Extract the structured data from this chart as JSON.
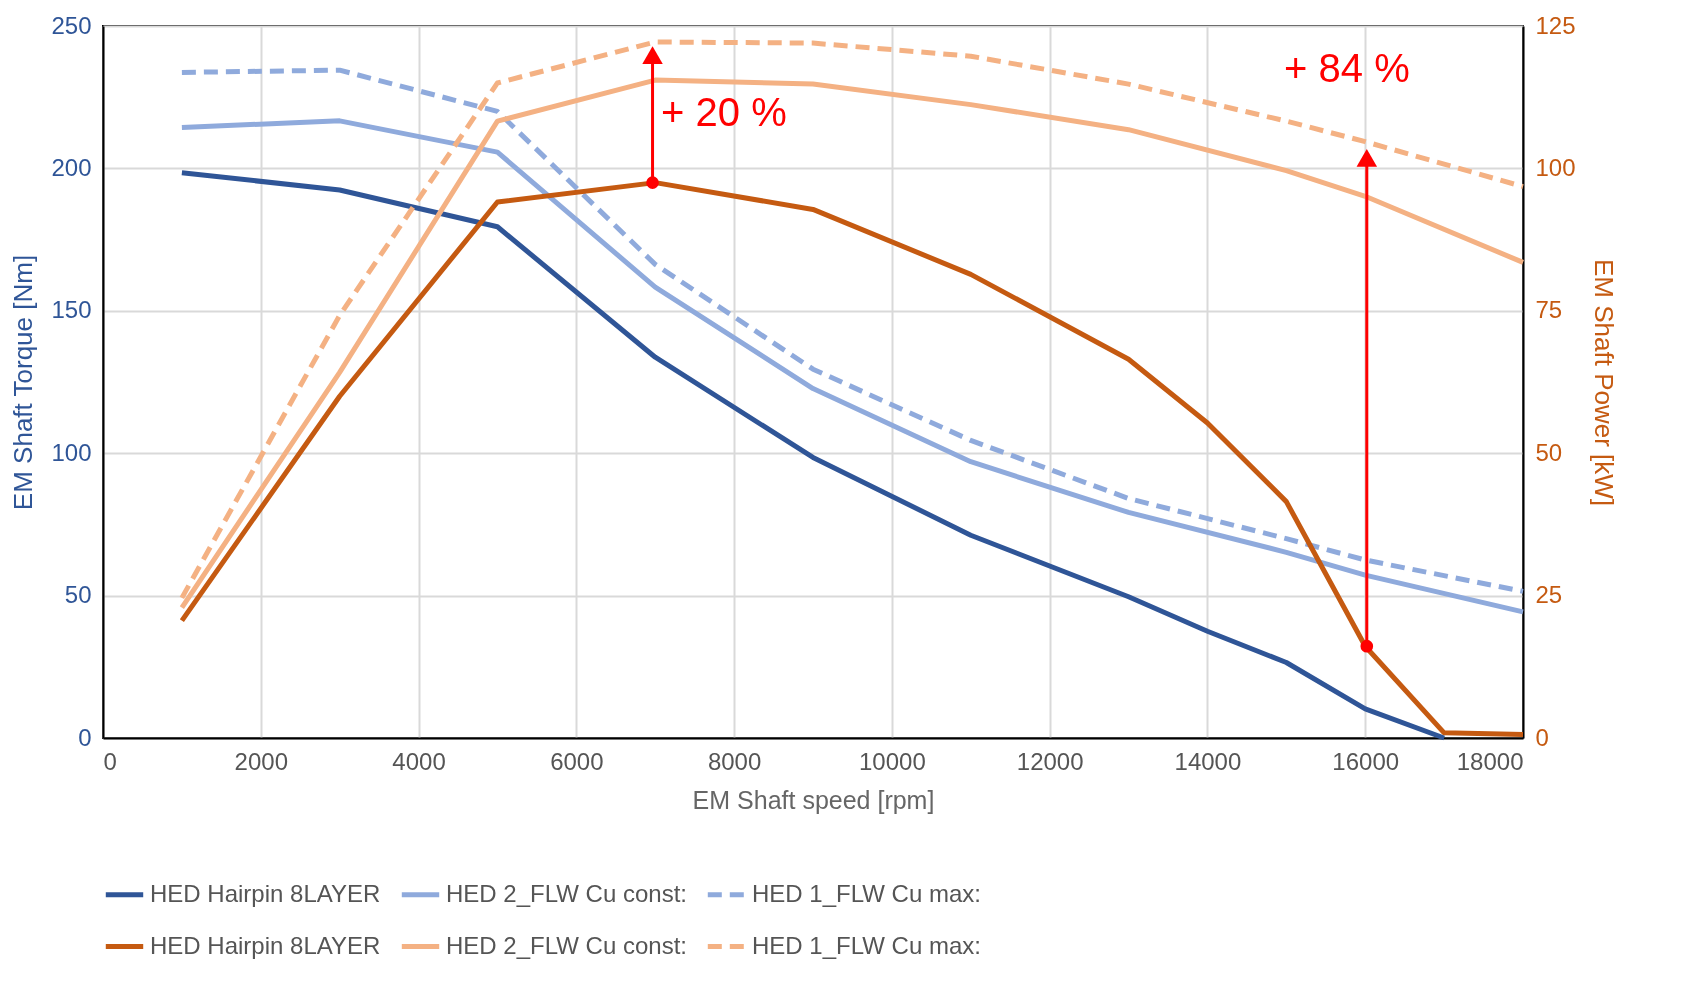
{
  "chart_data": {
    "type": "line",
    "xlabel": "EM Shaft speed [rpm]",
    "ylabel": "EM Shaft Torque [Nm]",
    "y2label": "EM Shaft Power [kW]",
    "xlim": [
      0,
      18000
    ],
    "xticks": [
      0,
      2000,
      4000,
      6000,
      8000,
      10000,
      12000,
      14000,
      16000,
      18000
    ],
    "ylim": [
      0,
      250
    ],
    "yticks": [
      0,
      50,
      100,
      150,
      200,
      250
    ],
    "y2lim": [
      0,
      125
    ],
    "y2ticks": [
      0,
      25,
      50,
      75,
      100,
      125
    ],
    "grid": true,
    "legend": "bottom",
    "line_style": "solid",
    "series": [
      {
        "name": "HED Hairpin 8LAYER",
        "color": "#2f5597",
        "x": [
          1000,
          3000,
          5000,
          7000,
          9000,
          11000,
          13000,
          14000,
          15000,
          16000,
          17000
        ],
        "values": [
          198.5,
          192.4,
          179.5,
          133.7,
          98.5,
          71.2,
          49.6,
          37.5,
          26.5,
          10.2,
          0
        ]
      },
      {
        "name": "HED 2_FLW Cu const:",
        "color": "#8faadc",
        "x": [
          1000,
          3000,
          5000,
          7000,
          9000,
          11000,
          13000,
          15000,
          16000,
          18000
        ],
        "values": [
          214.4,
          216.7,
          205.7,
          158.3,
          122.7,
          97,
          79.2,
          65.2,
          57.2,
          44.3
        ]
      },
      {
        "name": "HED 1_FLW Cu max:",
        "color": "#8faadc",
        "line_style": "dashed",
        "x": [
          1000,
          3000,
          5000,
          7000,
          9000,
          11000,
          13000,
          15000,
          16000,
          18000
        ],
        "values": [
          233.7,
          234.5,
          220,
          166.3,
          129.5,
          104.5,
          84.1,
          70,
          62.5,
          51.5
        ]
      },
      {
        "name": "HED Hairpin 8LAYER",
        "color": "#c55a11",
        "axis": "y2",
        "x": [
          1000,
          3000,
          5000,
          7000,
          9000,
          11000,
          13000,
          14000,
          15000,
          16000,
          17000,
          18000
        ],
        "values": [
          20.6,
          60,
          94.1,
          97.5,
          92.8,
          81.4,
          66.5,
          55.3,
          41.5,
          16.1,
          0.9,
          0.6
        ]
      },
      {
        "name": "HED 2_FLW Cu const:",
        "color": "#f4b183",
        "axis": "y2",
        "x": [
          1000,
          3000,
          5000,
          7000,
          9000,
          11000,
          13000,
          15000,
          16000,
          18000
        ],
        "values": [
          22.9,
          64.2,
          108.3,
          115.5,
          114.8,
          111.2,
          106.8,
          99.6,
          95.1,
          83.5
        ]
      },
      {
        "name": "HED 1_FLW Cu max:",
        "color": "#f4b183",
        "axis": "y2",
        "line_style": "dashed",
        "x": [
          1000,
          3000,
          5000,
          7000,
          9000,
          11000,
          13000,
          15000,
          16000,
          18000
        ],
        "values": [
          24.6,
          74.2,
          115,
          122.2,
          122,
          119.7,
          114.8,
          108.3,
          104.7,
          96.8
        ]
      }
    ],
    "annotations": [
      "+ 20 %",
      "+ 84 %"
    ]
  }
}
